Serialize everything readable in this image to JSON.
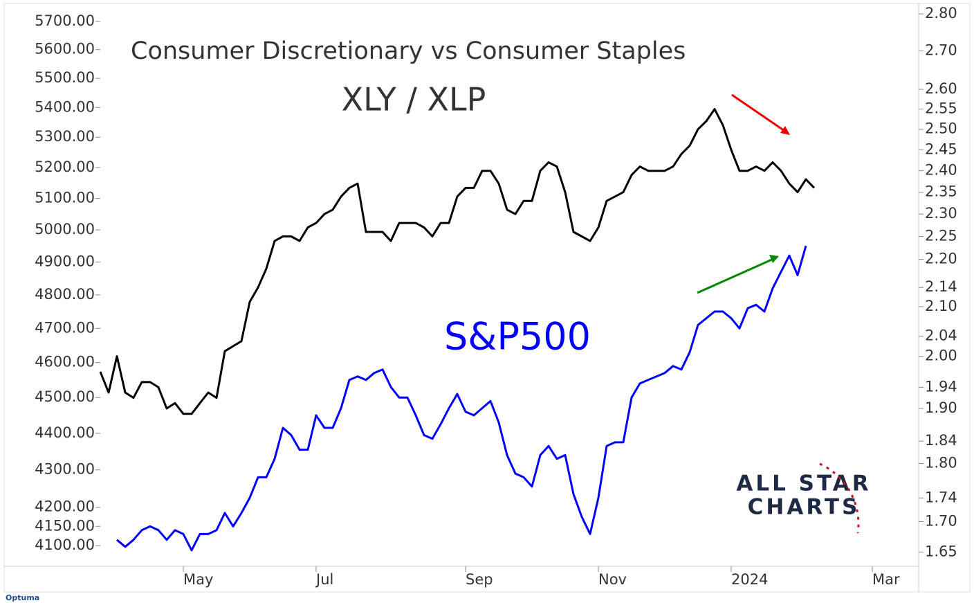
{
  "chart_data": {
    "type": "line",
    "title": "Consumer Discretionary vs Consumer Staples",
    "logo": [
      "ALL STAR",
      "CHARTS"
    ],
    "source": "Optuma",
    "log_scale": true,
    "categories": [
      null,
      null,
      null,
      null,
      null,
      null,
      null,
      null,
      null,
      null,
      "May",
      null,
      null,
      null,
      null,
      null,
      null,
      null,
      null,
      null,
      null,
      null,
      null,
      null,
      null,
      null,
      "Jul",
      null,
      null,
      null,
      null,
      null,
      null,
      null,
      null,
      null,
      null,
      null,
      null,
      null,
      null,
      null,
      null,
      null,
      "Sep",
      null,
      null,
      null,
      null,
      null,
      null,
      null,
      null,
      null,
      null,
      null,
      null,
      null,
      null,
      null,
      "Nov",
      null,
      null,
      null,
      null,
      null,
      null,
      null,
      null,
      null,
      null,
      null,
      null,
      null,
      null,
      null,
      "2024",
      null,
      null,
      null,
      null,
      null,
      null,
      null,
      null,
      null,
      null,
      null,
      null,
      null,
      null,
      null,
      null,
      "Mar",
      null,
      null,
      null,
      null,
      null
    ],
    "series": [
      {
        "name": "XLY / XLP",
        "color": "#000000",
        "axis": "y2",
        "values": [
          1.97,
          1.93,
          2.0,
          1.93,
          1.92,
          1.95,
          1.95,
          1.94,
          1.9,
          1.91,
          1.89,
          1.89,
          1.91,
          1.93,
          1.92,
          2.01,
          2.02,
          2.03,
          2.11,
          2.14,
          2.18,
          2.24,
          2.25,
          2.25,
          2.24,
          2.27,
          2.28,
          2.3,
          2.31,
          2.34,
          2.36,
          2.37,
          2.26,
          2.26,
          2.26,
          2.24,
          2.28,
          2.28,
          2.28,
          2.27,
          2.25,
          2.28,
          2.28,
          2.34,
          2.36,
          2.36,
          2.4,
          2.4,
          2.37,
          2.31,
          2.3,
          2.33,
          2.33,
          2.4,
          2.42,
          2.41,
          2.35,
          2.26,
          2.25,
          2.24,
          2.27,
          2.33,
          2.34,
          2.35,
          2.39,
          2.41,
          2.4,
          2.4,
          2.4,
          2.41,
          2.44,
          2.46,
          2.5,
          2.52,
          2.55,
          2.51,
          2.45,
          2.4,
          2.4,
          2.41,
          2.4,
          2.42,
          2.4,
          2.37,
          2.35,
          2.38,
          2.36,
          null,
          null,
          null,
          null,
          null,
          null,
          null,
          null,
          null,
          null,
          null,
          null
        ]
      },
      {
        "name": "S&P500",
        "color": "#0000ff",
        "axis": "y",
        "values": [
          null,
          null,
          4115,
          4097,
          4115,
          4140,
          4150,
          4140,
          4115,
          4140,
          4130,
          4088,
          4130,
          4130,
          4140,
          4185,
          4150,
          4185,
          4225,
          4280,
          4280,
          4330,
          4415,
          4395,
          4355,
          4355,
          4450,
          4415,
          4415,
          4470,
          4550,
          4560,
          4550,
          4570,
          4580,
          4530,
          4500,
          4500,
          4450,
          4395,
          4385,
          4425,
          4470,
          4510,
          4460,
          4450,
          4470,
          4490,
          4430,
          4340,
          4290,
          4280,
          4255,
          4340,
          4365,
          4330,
          4340,
          4235,
          4175,
          4130,
          4225,
          4365,
          4375,
          4375,
          4500,
          4540,
          4550,
          4560,
          4570,
          4590,
          4580,
          4630,
          4710,
          4730,
          4750,
          4750,
          4730,
          4700,
          4760,
          4770,
          4750,
          4820,
          4870,
          4920,
          4860,
          4950,
          null,
          null,
          null,
          null,
          null,
          null,
          null,
          null,
          null,
          null,
          null,
          null,
          null
        ]
      }
    ],
    "ylim": [
      4047,
      5765
    ],
    "yticks": [
      {
        "value": 5700,
        "label": "5700.00"
      },
      {
        "value": 5600,
        "label": "5600.00"
      },
      {
        "value": 5500,
        "label": "5500.00"
      },
      {
        "value": 5400,
        "label": "5400.00"
      },
      {
        "value": 5300,
        "label": "5300.00"
      },
      {
        "value": 5200,
        "label": "5200.00"
      },
      {
        "value": 5100,
        "label": "5100.00"
      },
      {
        "value": 5000,
        "label": "5000.00"
      },
      {
        "value": 4900,
        "label": "4900.00"
      },
      {
        "value": 4800,
        "label": "4800.00"
      },
      {
        "value": 4700,
        "label": "4700.00"
      },
      {
        "value": 4600,
        "label": "4600.00"
      },
      {
        "value": 4500,
        "label": "4500.00"
      },
      {
        "value": 4400,
        "label": "4400.00"
      },
      {
        "value": 4300,
        "label": "4300.00"
      },
      {
        "value": 4200,
        "label": "4200.00"
      },
      {
        "value": 4150,
        "label": "4150.00"
      },
      {
        "value": 4100,
        "label": "4100.00"
      }
    ],
    "y2lim": [
      1.627,
      2.829
    ],
    "y2ticks": [
      {
        "value": 2.8,
        "label": "2.80"
      },
      {
        "value": 2.7,
        "label": "2.70"
      },
      {
        "value": 2.6,
        "label": "2.60"
      },
      2.55,
      {
        "value": 2.5,
        "label": "2.50"
      },
      2.45,
      {
        "value": 2.4,
        "label": "2.40"
      },
      2.35,
      {
        "value": 2.3,
        "label": "2.30"
      },
      2.25,
      {
        "value": 2.2,
        "label": "2.20"
      },
      2.14,
      {
        "value": 2.1,
        "label": "2.10"
      },
      2.04,
      {
        "value": 2.0,
        "label": "2.00"
      },
      1.94,
      {
        "value": 1.9,
        "label": "1.90"
      },
      1.84,
      {
        "value": 1.8,
        "label": "1.80"
      },
      1.74,
      {
        "value": 1.7,
        "label": "1.70"
      },
      1.65
    ],
    "grid": false
  }
}
